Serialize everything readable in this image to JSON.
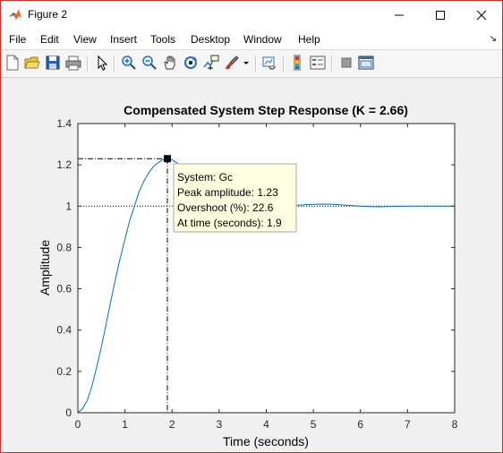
{
  "window": {
    "title": "Figure 2"
  },
  "menu": {
    "items": [
      "File",
      "Edit",
      "View",
      "Insert",
      "Tools",
      "Desktop",
      "Window",
      "Help"
    ]
  },
  "toolbar": {
    "icons": [
      "new-figure",
      "open-file",
      "save",
      "print",
      "edit-plot-pointer",
      "zoom-in",
      "zoom-out",
      "pan",
      "rotate-3d",
      "data-cursor",
      "brush",
      "link-plot",
      "insert-colorbar",
      "insert-legend",
      "hide-plot-tools",
      "show-plot-tools"
    ]
  },
  "chart_data": {
    "type": "line",
    "title": "Compensated System Step Response (K = 2.66)",
    "xlabel": "Time (seconds)",
    "ylabel": "Amplitude",
    "xlim": [
      0,
      8
    ],
    "ylim": [
      0,
      1.4
    ],
    "xticks": [
      "0",
      "1",
      "2",
      "3",
      "4",
      "5",
      "6",
      "7",
      "8"
    ],
    "yticks": [
      "0",
      "0.2",
      "0.4",
      "0.6",
      "0.8",
      "1",
      "1.2",
      "1.4"
    ],
    "series": [
      {
        "name": "Gc",
        "color": "#0072bd",
        "x": [
          0,
          0.1,
          0.2,
          0.3,
          0.4,
          0.5,
          0.6,
          0.7,
          0.8,
          0.9,
          1.0,
          1.1,
          1.2,
          1.3,
          1.4,
          1.5,
          1.6,
          1.7,
          1.8,
          1.9,
          2.0,
          2.1,
          2.2,
          2.3,
          2.4,
          2.5,
          2.6,
          2.7,
          2.8,
          2.9,
          3.0,
          3.2,
          3.4,
          3.6,
          3.8,
          4.0,
          4.2,
          4.4,
          4.6,
          4.8,
          5.0,
          5.2,
          5.4,
          5.6,
          5.8,
          6.0,
          6.2,
          6.4,
          6.6,
          6.8,
          7.0,
          7.5,
          8.0
        ],
        "y": [
          0,
          0.02,
          0.06,
          0.13,
          0.22,
          0.32,
          0.43,
          0.54,
          0.65,
          0.75,
          0.84,
          0.93,
          1.0,
          1.07,
          1.12,
          1.16,
          1.19,
          1.21,
          1.225,
          1.23,
          1.225,
          1.21,
          1.19,
          1.165,
          1.14,
          1.11,
          1.085,
          1.06,
          1.04,
          1.02,
          1.005,
          0.985,
          0.975,
          0.972,
          0.975,
          0.982,
          0.99,
          0.997,
          1.003,
          1.007,
          1.009,
          1.01,
          1.009,
          1.006,
          1.003,
          1.0,
          0.998,
          0.997,
          0.998,
          0.999,
          1.0,
          1.0,
          1.0
        ]
      }
    ],
    "final_value": 1,
    "peak": {
      "x": 1.9,
      "y": 1.23
    },
    "grid": false
  },
  "datatip": {
    "line1": "System: Gc",
    "line2": "Peak amplitude: 1.23",
    "line3": "Overshoot (%): 22.6",
    "line4": "At time (seconds): 1.9"
  }
}
